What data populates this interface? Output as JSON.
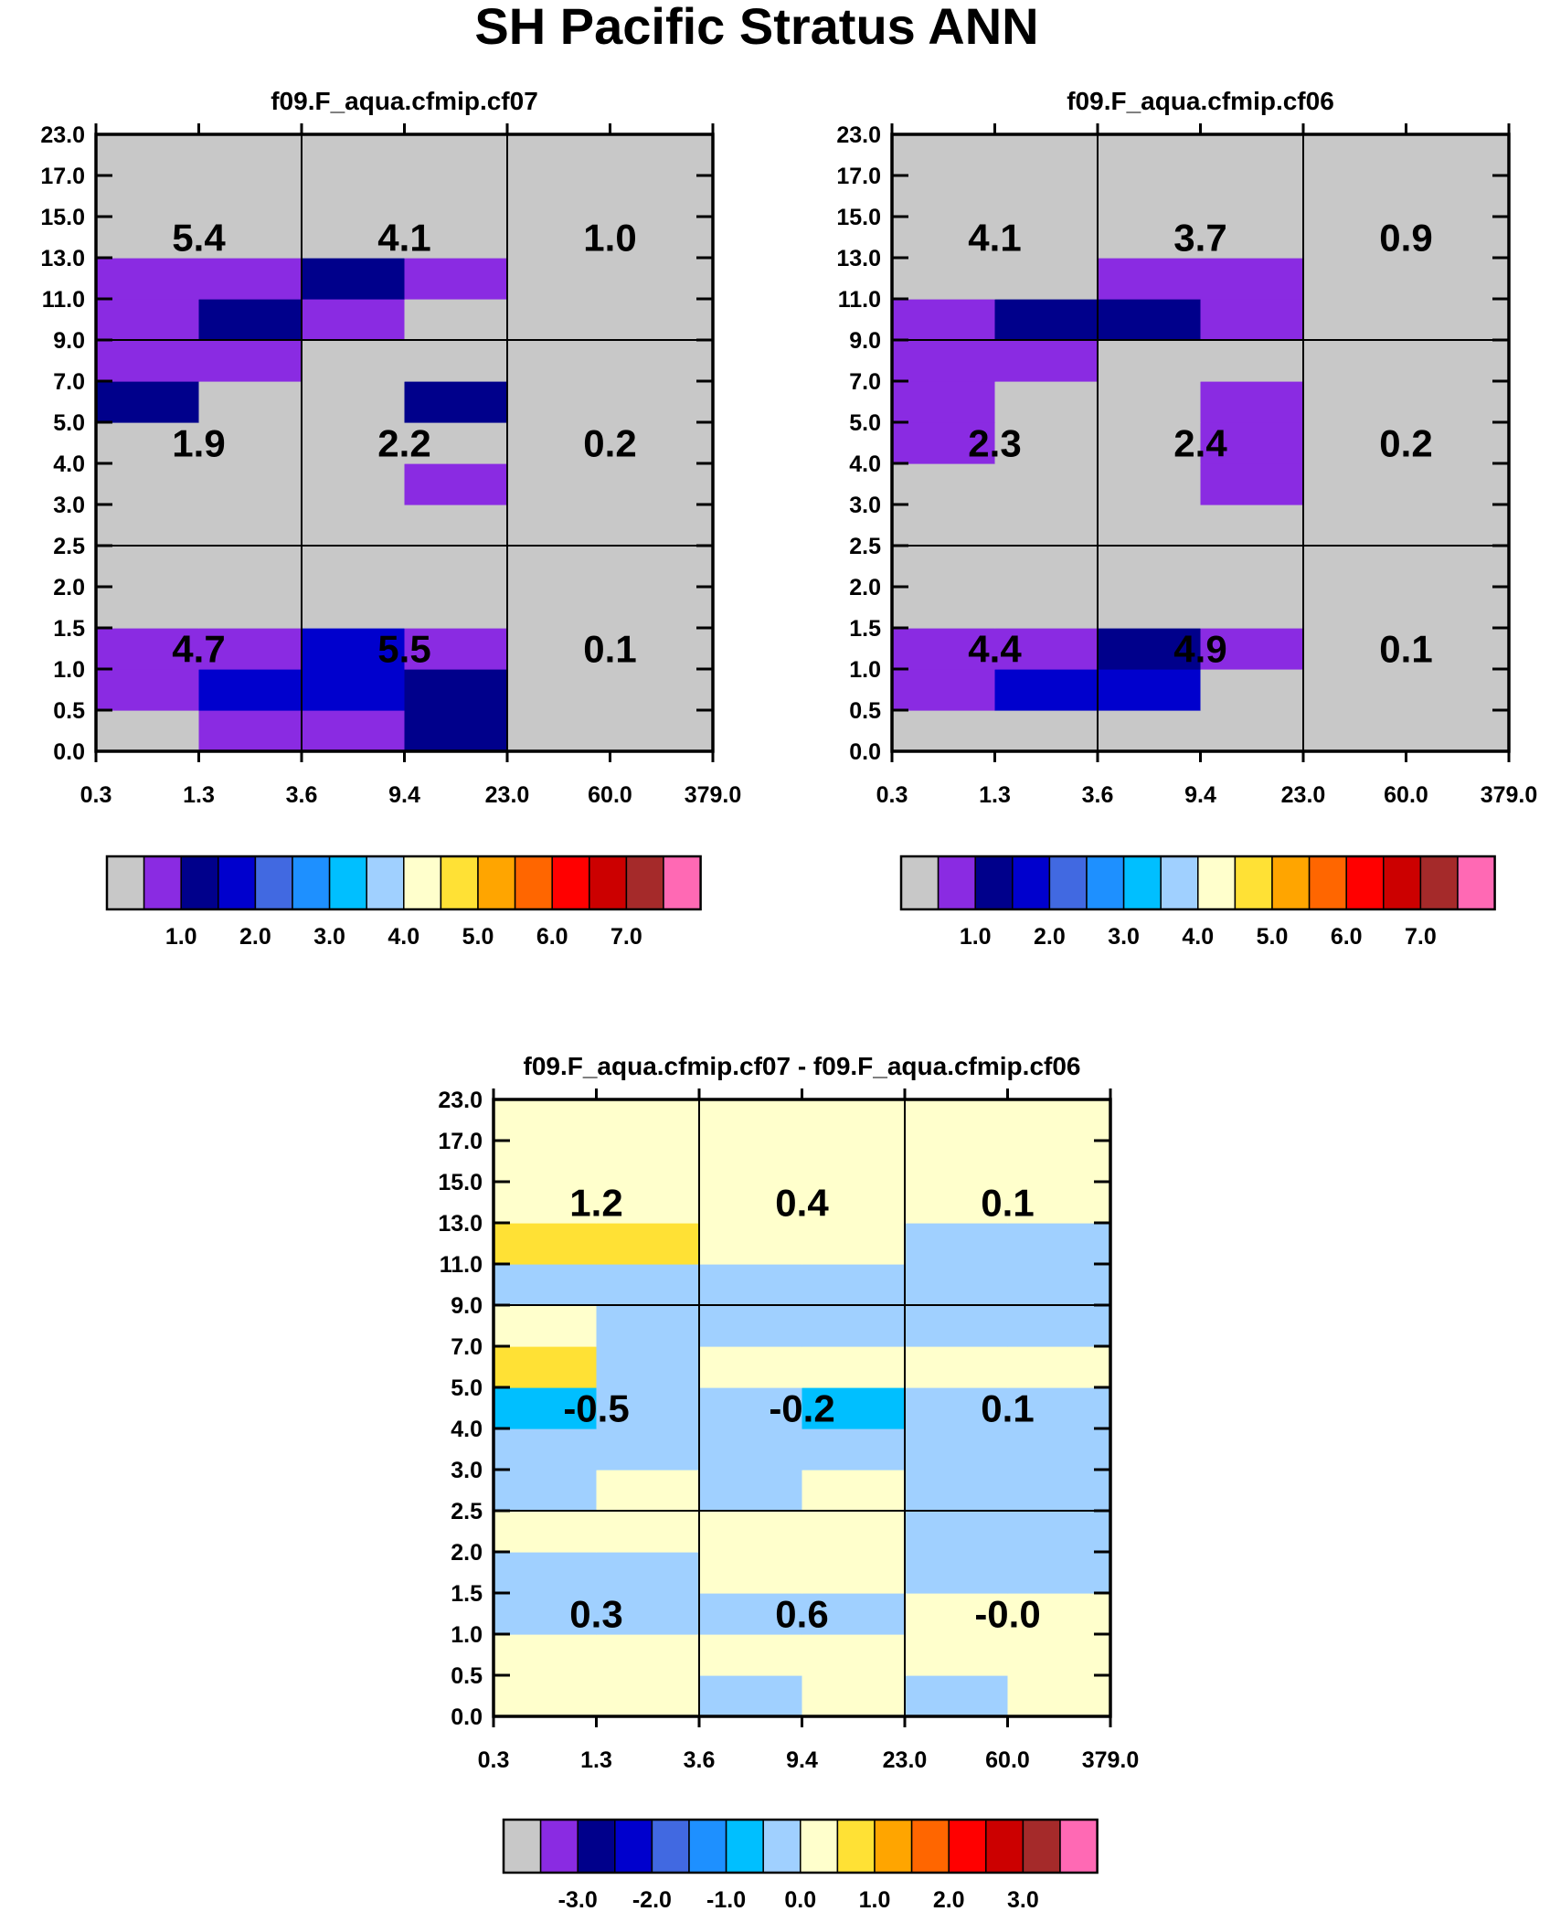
{
  "title": "SH Pacific Stratus ANN",
  "colors": {
    "palette": [
      "#c8c8c8",
      "#8a2be2",
      "#00008b",
      "#0000cd",
      "#4169e1",
      "#1e90ff",
      "#00bfff",
      "#a0d0ff",
      "#ffffcc",
      "#ffe135",
      "#ffa500",
      "#ff6600",
      "#ff0000",
      "#cc0000",
      "#a52a2a",
      "#ff69b4"
    ],
    "grid_line": "#000000"
  },
  "x_tick_labels": [
    "0.3",
    "1.3",
    "3.6",
    "9.4",
    "23.0",
    "60.0",
    "379.0"
  ],
  "y_tick_labels": [
    "0.0",
    "0.5",
    "1.0",
    "1.5",
    "2.0",
    "2.5",
    "3.0",
    "4.0",
    "5.0",
    "7.0",
    "9.0",
    "11.0",
    "13.0",
    "15.0",
    "17.0",
    "23.0"
  ],
  "chart_data": [
    {
      "type": "heatmap",
      "title": "f09.F_aqua.cfmip.cf07",
      "x_bins": [
        "0.3",
        "1.3",
        "3.6",
        "9.4",
        "23.0",
        "60.0",
        "379.0"
      ],
      "y_bins": [
        "0.0",
        "0.5",
        "1.0",
        "1.5",
        "2.0",
        "2.5",
        "3.0",
        "4.0",
        "5.0",
        "7.0",
        "9.0",
        "11.0",
        "13.0",
        "15.0",
        "17.0",
        "23.0"
      ],
      "cells_color_index": [
        [
          0,
          1,
          1,
          2,
          0,
          0
        ],
        [
          1,
          3,
          3,
          2,
          0,
          0
        ],
        [
          1,
          1,
          3,
          1,
          0,
          0
        ],
        [
          0,
          0,
          0,
          0,
          0,
          0
        ],
        [
          0,
          0,
          0,
          0,
          0,
          0
        ],
        [
          0,
          0,
          0,
          0,
          0,
          0
        ],
        [
          0,
          0,
          0,
          1,
          0,
          0
        ],
        [
          0,
          0,
          0,
          0,
          0,
          0
        ],
        [
          2,
          0,
          0,
          2,
          0,
          0
        ],
        [
          1,
          1,
          0,
          0,
          0,
          0
        ],
        [
          1,
          2,
          1,
          0,
          0,
          0
        ],
        [
          1,
          1,
          2,
          1,
          0,
          0
        ],
        [
          0,
          0,
          0,
          0,
          0,
          0
        ],
        [
          0,
          0,
          0,
          0,
          0,
          0
        ],
        [
          0,
          0,
          0,
          0,
          0,
          0
        ]
      ],
      "box_totals": [
        [
          "4.7",
          "5.5",
          "0.1"
        ],
        [
          "1.9",
          "2.2",
          "0.2"
        ],
        [
          "5.4",
          "4.1",
          "1.0"
        ]
      ],
      "colorbar_labels": [
        "1.0",
        "2.0",
        "3.0",
        "4.0",
        "5.0",
        "6.0",
        "7.0"
      ]
    },
    {
      "type": "heatmap",
      "title": "f09.F_aqua.cfmip.cf06",
      "x_bins": [
        "0.3",
        "1.3",
        "3.6",
        "9.4",
        "23.0",
        "60.0",
        "379.0"
      ],
      "y_bins": [
        "0.0",
        "0.5",
        "1.0",
        "1.5",
        "2.0",
        "2.5",
        "3.0",
        "4.0",
        "5.0",
        "7.0",
        "9.0",
        "11.0",
        "13.0",
        "15.0",
        "17.0",
        "23.0"
      ],
      "cells_color_index": [
        [
          0,
          0,
          0,
          0,
          0,
          0
        ],
        [
          1,
          3,
          3,
          0,
          0,
          0
        ],
        [
          1,
          1,
          2,
          1,
          0,
          0
        ],
        [
          0,
          0,
          0,
          0,
          0,
          0
        ],
        [
          0,
          0,
          0,
          0,
          0,
          0
        ],
        [
          0,
          0,
          0,
          0,
          0,
          0
        ],
        [
          0,
          0,
          0,
          1,
          0,
          0
        ],
        [
          1,
          0,
          0,
          1,
          0,
          0
        ],
        [
          1,
          0,
          0,
          1,
          0,
          0
        ],
        [
          1,
          1,
          0,
          0,
          0,
          0
        ],
        [
          1,
          2,
          2,
          1,
          0,
          0
        ],
        [
          0,
          0,
          1,
          1,
          0,
          0
        ],
        [
          0,
          0,
          0,
          0,
          0,
          0
        ],
        [
          0,
          0,
          0,
          0,
          0,
          0
        ],
        [
          0,
          0,
          0,
          0,
          0,
          0
        ]
      ],
      "box_totals": [
        [
          "4.4",
          "4.9",
          "0.1"
        ],
        [
          "2.3",
          "2.4",
          "0.2"
        ],
        [
          "4.1",
          "3.7",
          "0.9"
        ]
      ],
      "colorbar_labels": [
        "1.0",
        "2.0",
        "3.0",
        "4.0",
        "5.0",
        "6.0",
        "7.0"
      ]
    },
    {
      "type": "heatmap",
      "title": "f09.F_aqua.cfmip.cf07 - f09.F_aqua.cfmip.cf06",
      "x_bins": [
        "0.3",
        "1.3",
        "3.6",
        "9.4",
        "23.0",
        "60.0",
        "379.0"
      ],
      "y_bins": [
        "0.0",
        "0.5",
        "1.0",
        "1.5",
        "2.0",
        "2.5",
        "3.0",
        "4.0",
        "5.0",
        "7.0",
        "9.0",
        "11.0",
        "13.0",
        "15.0",
        "17.0",
        "23.0"
      ],
      "cells_color_index": [
        [
          8,
          8,
          7,
          8,
          7,
          8
        ],
        [
          8,
          8,
          8,
          8,
          8,
          8
        ],
        [
          7,
          7,
          7,
          7,
          8,
          8
        ],
        [
          7,
          7,
          8,
          8,
          7,
          7
        ],
        [
          8,
          8,
          8,
          8,
          7,
          7
        ],
        [
          7,
          8,
          7,
          8,
          7,
          7
        ],
        [
          7,
          7,
          7,
          7,
          7,
          7
        ],
        [
          6,
          7,
          7,
          6,
          7,
          7
        ],
        [
          9,
          7,
          8,
          8,
          8,
          8
        ],
        [
          8,
          7,
          7,
          7,
          7,
          7
        ],
        [
          7,
          7,
          7,
          7,
          7,
          7
        ],
        [
          9,
          9,
          8,
          8,
          7,
          7
        ],
        [
          8,
          8,
          8,
          8,
          8,
          8
        ],
        [
          8,
          8,
          8,
          8,
          8,
          8
        ],
        [
          8,
          8,
          8,
          8,
          8,
          8
        ]
      ],
      "box_totals": [
        [
          "0.3",
          "0.6",
          "-0.0"
        ],
        [
          "-0.5",
          "-0.2",
          "0.1"
        ],
        [
          "1.2",
          "0.4",
          "0.1"
        ]
      ],
      "colorbar_labels": [
        "-3.0",
        "-2.0",
        "-1.0",
        "0.0",
        "1.0",
        "2.0",
        "3.0"
      ]
    }
  ]
}
